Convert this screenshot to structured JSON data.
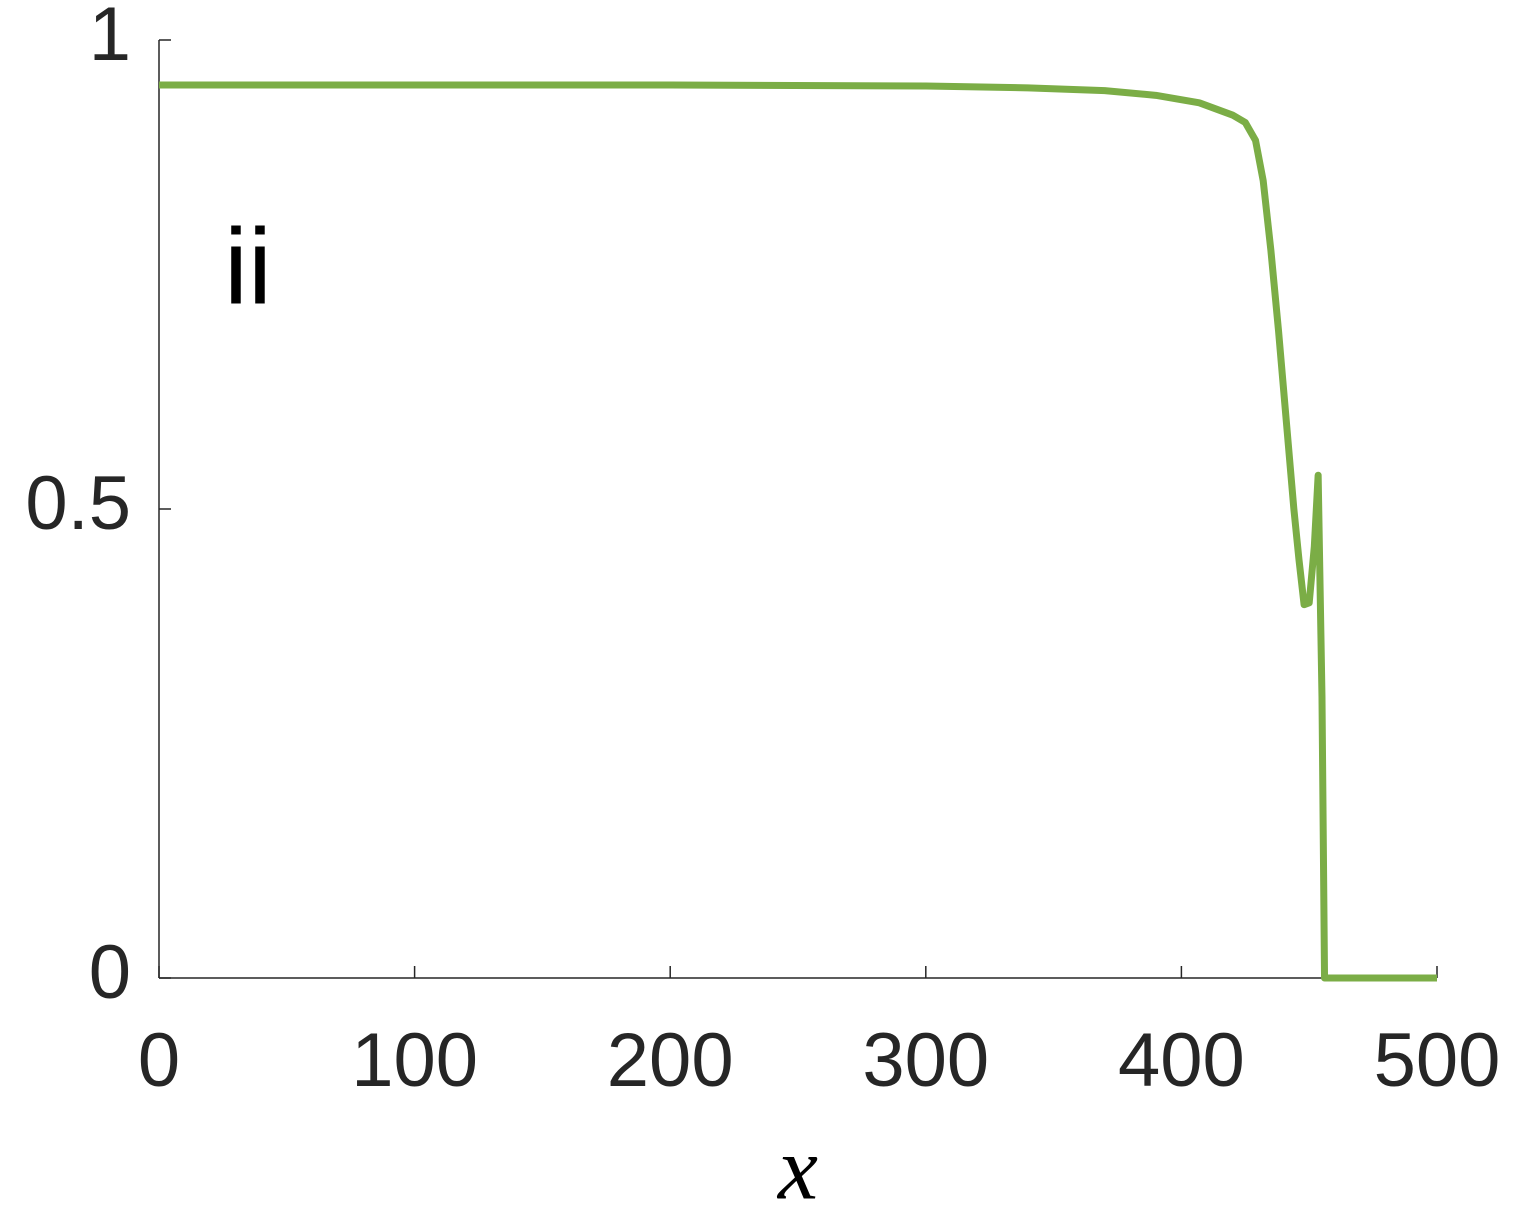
{
  "chart_data": {
    "type": "line",
    "xlabel": "x",
    "annotation": "ii",
    "x": [
      0,
      100,
      200,
      300,
      340,
      370,
      390,
      407,
      420,
      425,
      429,
      432,
      435,
      438,
      441,
      444,
      446,
      448,
      450,
      452,
      453.5,
      455,
      456,
      470,
      500
    ],
    "series": [
      {
        "color": "#7bad46",
        "values": [
          0.952,
          0.952,
          0.952,
          0.951,
          0.949,
          0.946,
          0.941,
          0.933,
          0.92,
          0.912,
          0.893,
          0.85,
          0.776,
          0.69,
          0.595,
          0.5,
          0.446,
          0.398,
          0.4,
          0.46,
          0.536,
          0.3,
          0,
          0,
          0
        ]
      }
    ],
    "xlim": [
      0,
      500
    ],
    "xticks": [
      0,
      100,
      200,
      300,
      400,
      500
    ],
    "ylim": [
      0,
      1
    ],
    "yticks": [
      0,
      0.5,
      1
    ],
    "grid": false
  }
}
